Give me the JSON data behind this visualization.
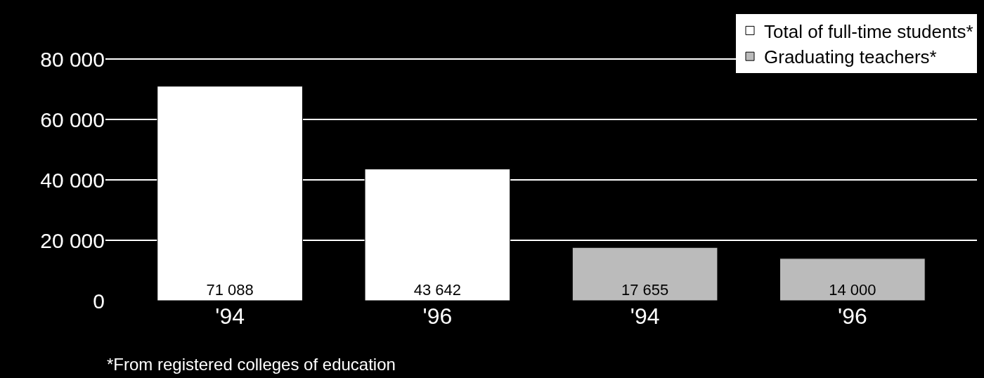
{
  "chart_data": {
    "type": "bar",
    "categories": [
      "'94",
      "'96",
      "'94",
      "'96"
    ],
    "series": [
      {
        "name": "Total of full-time students*",
        "color": "#ffffff",
        "values": [
          71088,
          43642,
          null,
          null
        ],
        "value_labels": [
          "71 088",
          "43 642",
          null,
          null
        ]
      },
      {
        "name": "Graduating teachers*",
        "color": "#bbbbbb",
        "values": [
          null,
          null,
          17655,
          14000
        ],
        "value_labels": [
          null,
          null,
          "17 655",
          "14 000"
        ]
      }
    ],
    "ylim": [
      0,
      95000
    ],
    "yticks": [
      0,
      {
        "value": 20000,
        "label": "20 000"
      },
      {
        "value": 40000,
        "label": "40 000"
      },
      {
        "value": 60000,
        "label": "60 000"
      },
      {
        "value": 80000,
        "label": "80 000"
      }
    ],
    "grid": "y",
    "legend": "top right",
    "annotations": [
      "*From registered colleges of education"
    ]
  }
}
